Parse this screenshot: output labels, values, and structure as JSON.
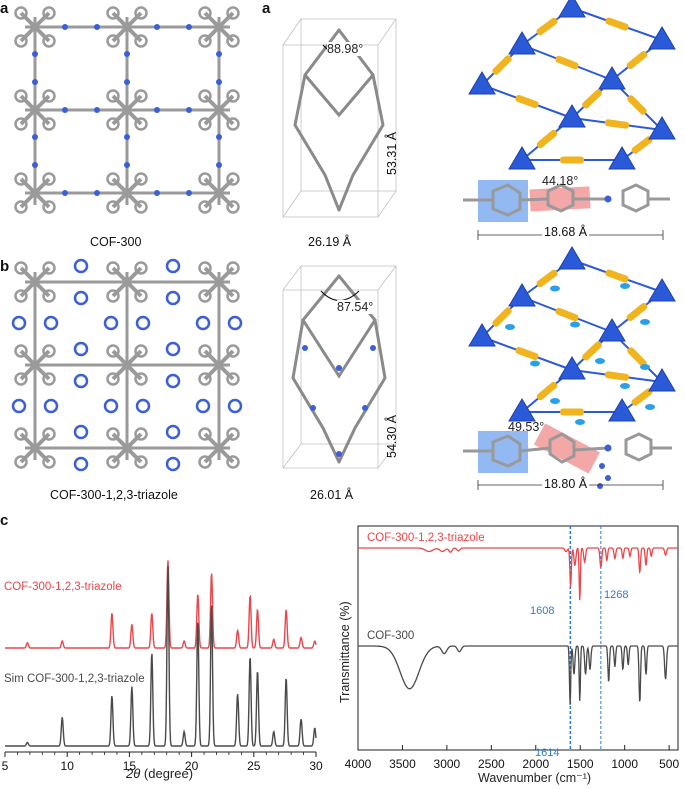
{
  "panels": {
    "a": {
      "letter": "a",
      "structure_label": "COF-300",
      "angle": "88.98°",
      "cell_width": "26.19 Å",
      "cell_height": "53.31 Å",
      "dihedral": "44.18°",
      "linker_length": "18.68 Å"
    },
    "b": {
      "letter": "b",
      "structure_label": "COF-300-1,2,3-triazole",
      "angle": "87.54°",
      "cell_width": "26.01 Å",
      "cell_height": "54.30 Å",
      "dihedral": "49.53°",
      "linker_length": "18.80 Å"
    },
    "c": {
      "letter": "c"
    }
  },
  "colors": {
    "red": "#e8474b",
    "dark": "#4a4a4a",
    "blue_label": "#2f7bd6",
    "tetra": "#2b5ad9",
    "rod": "#f0b41e",
    "atom": "#9a9a9a",
    "nitrogen": "#3a5fd8"
  },
  "chart_data": [
    {
      "type": "line",
      "title": "",
      "xlabel": "2θ (degree)",
      "ylabel": "",
      "xlim": [
        5,
        30
      ],
      "xticks": [
        5,
        10,
        15,
        20,
        25,
        30
      ],
      "series": [
        {
          "name": "COF-300-1,2,3-triazole",
          "color": "#e8474b",
          "peaks": [
            [
              6.8,
              0.06
            ],
            [
              9.6,
              0.08
            ],
            [
              13.6,
              0.4
            ],
            [
              15.2,
              0.27
            ],
            [
              16.8,
              0.4
            ],
            [
              18.1,
              1.0
            ],
            [
              19.4,
              0.08
            ],
            [
              20.5,
              0.62
            ],
            [
              21.6,
              0.86
            ],
            [
              23.7,
              0.2
            ],
            [
              24.7,
              0.6
            ],
            [
              25.3,
              0.44
            ],
            [
              26.6,
              0.1
            ],
            [
              27.6,
              0.44
            ],
            [
              28.8,
              0.12
            ],
            [
              29.9,
              0.08
            ]
          ]
        },
        {
          "name": "Sim COF-300-1,2,3-triazole",
          "color": "#4a4a4a",
          "peaks": [
            [
              6.8,
              0.02
            ],
            [
              9.6,
              0.16
            ],
            [
              13.6,
              0.28
            ],
            [
              15.2,
              0.33
            ],
            [
              16.8,
              0.52
            ],
            [
              18.1,
              1.0
            ],
            [
              19.4,
              0.08
            ],
            [
              20.5,
              0.7
            ],
            [
              21.6,
              0.79
            ],
            [
              23.7,
              0.29
            ],
            [
              24.7,
              0.5
            ],
            [
              25.3,
              0.42
            ],
            [
              26.6,
              0.08
            ],
            [
              27.6,
              0.38
            ],
            [
              28.8,
              0.15
            ],
            [
              29.9,
              0.1
            ]
          ]
        }
      ]
    },
    {
      "type": "line",
      "title": "",
      "xlabel": "Wavenumber (cm⁻¹)",
      "ylabel": "Transmittance (%)",
      "xlim": [
        4000,
        400
      ],
      "xticks": [
        4000,
        3500,
        3000,
        2500,
        2000,
        1500,
        1000,
        500
      ],
      "reference_lines": [
        1614,
        1608,
        1268
      ],
      "annotations": [
        {
          "text": "1608",
          "x": 1608
        },
        {
          "text": "1268",
          "x": 1268
        },
        {
          "text": "1614",
          "x": 1614
        }
      ],
      "series": [
        {
          "name": "COF-300-1,2,3-triazole",
          "color": "#e8474b",
          "bands": [
            [
              3200,
              0.05,
              60
            ],
            [
              3050,
              0.05,
              40
            ],
            [
              2960,
              0.06,
              25
            ],
            [
              2870,
              0.04,
              25
            ],
            [
              1660,
              0.05,
              20
            ],
            [
              1608,
              0.55,
              12
            ],
            [
              1560,
              0.25,
              15
            ],
            [
              1505,
              0.75,
              10
            ],
            [
              1450,
              0.2,
              15
            ],
            [
              1268,
              0.28,
              14
            ],
            [
              1200,
              0.18,
              12
            ],
            [
              1110,
              0.15,
              14
            ],
            [
              1020,
              0.15,
              12
            ],
            [
              940,
              0.12,
              12
            ],
            [
              830,
              0.35,
              12
            ],
            [
              760,
              0.25,
              12
            ],
            [
              700,
              0.12,
              12
            ],
            [
              540,
              0.1,
              15
            ]
          ]
        },
        {
          "name": "COF-300",
          "color": "#4a4a4a",
          "bands": [
            [
              3420,
              0.45,
              150
            ],
            [
              3030,
              0.08,
              40
            ],
            [
              2860,
              0.06,
              30
            ],
            [
              1614,
              0.62,
              10
            ],
            [
              1570,
              0.3,
              14
            ],
            [
              1505,
              0.58,
              10
            ],
            [
              1440,
              0.3,
              14
            ],
            [
              1390,
              0.25,
              14
            ],
            [
              1180,
              0.38,
              12
            ],
            [
              1110,
              0.22,
              12
            ],
            [
              1020,
              0.25,
              12
            ],
            [
              960,
              0.2,
              12
            ],
            [
              830,
              0.6,
              12
            ],
            [
              760,
              0.3,
              12
            ],
            [
              540,
              0.35,
              15
            ]
          ]
        }
      ]
    }
  ]
}
